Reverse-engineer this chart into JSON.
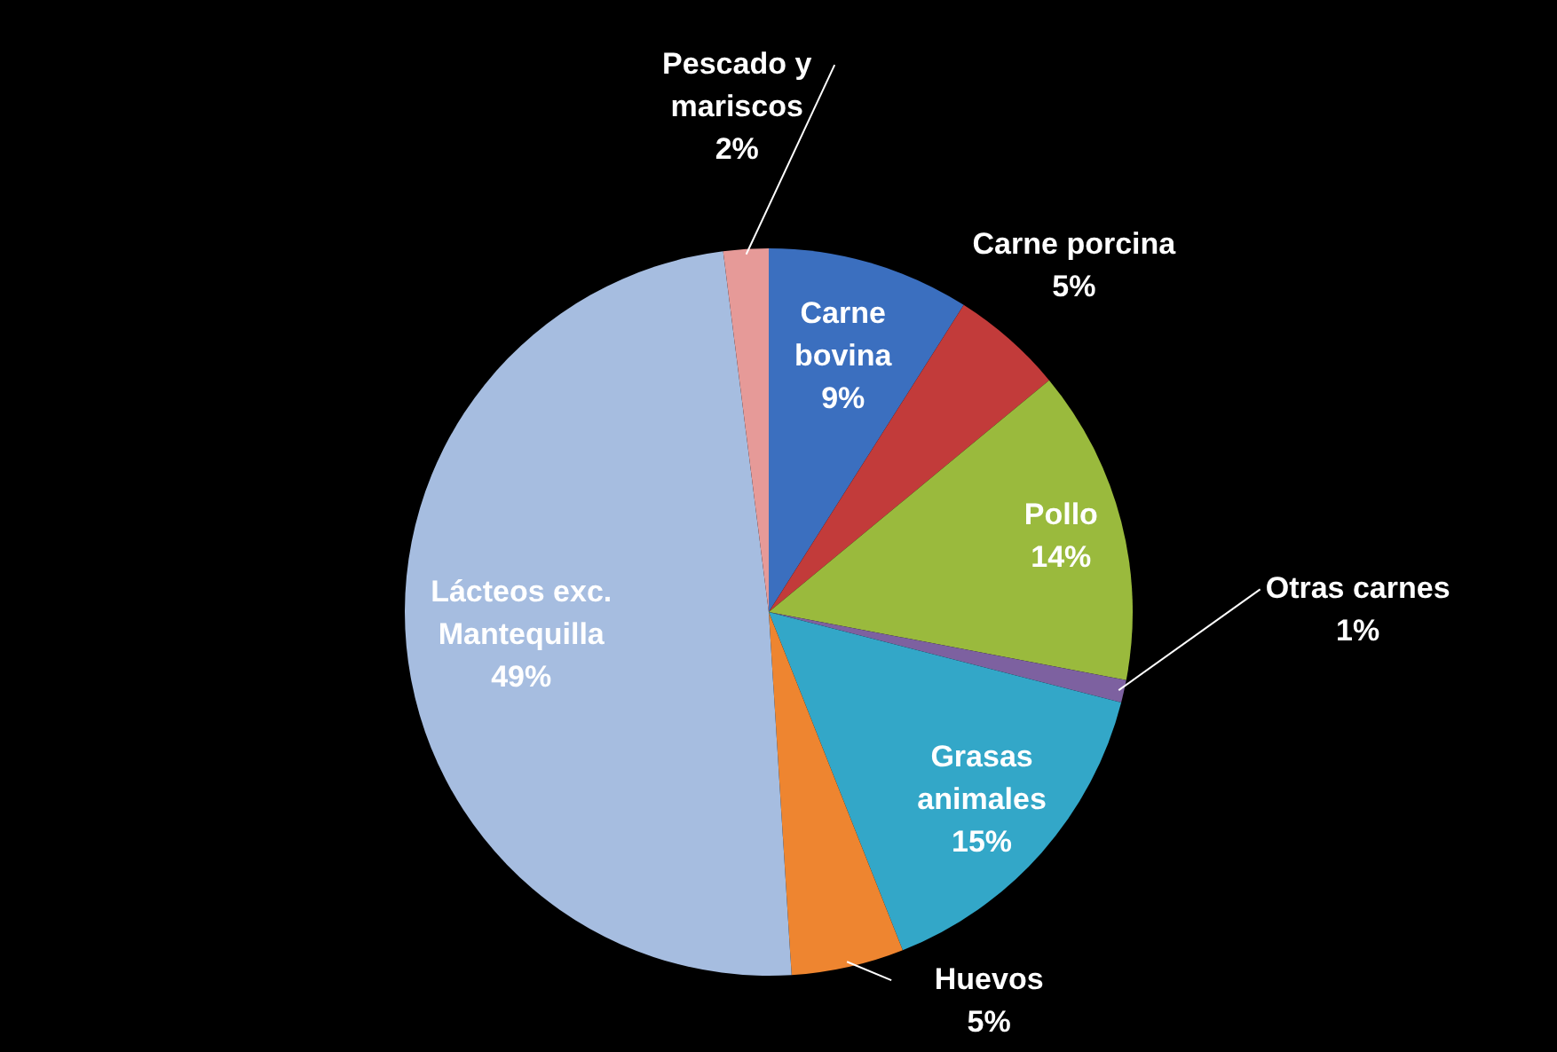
{
  "chart_data": {
    "type": "pie",
    "categories": [
      "Carne bovina",
      "Carne porcina",
      "Pollo",
      "Otras carnes",
      "Grasas animales",
      "Huevos",
      "Lácteos exc. Mantequilla",
      "Pescado y mariscos"
    ],
    "values": [
      9,
      5,
      14,
      1,
      15,
      5,
      49,
      2
    ],
    "value_labels": [
      "9%",
      "5%",
      "14%",
      "1%",
      "15%",
      "5%",
      "49%",
      "2%"
    ],
    "colors": [
      "#3b6fbf",
      "#c23b3a",
      "#9aba3d",
      "#7d61a0",
      "#33a7c8",
      "#ee8530",
      "#a6bde0",
      "#e69a98"
    ]
  }
}
